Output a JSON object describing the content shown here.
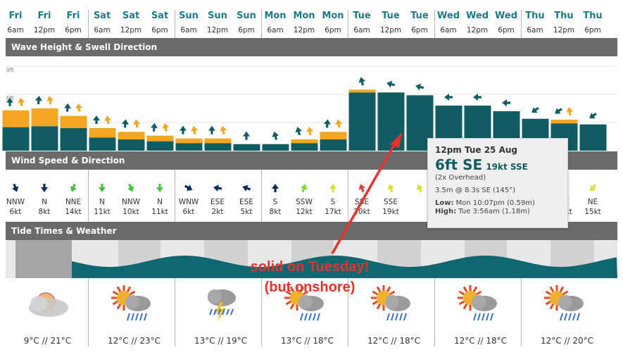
{
  "columns": [
    {
      "day": "Fri",
      "time": "6am"
    },
    {
      "day": "Fri",
      "time": "12pm"
    },
    {
      "day": "Fri",
      "time": "6pm"
    },
    {
      "day": "Sat",
      "time": "6am"
    },
    {
      "day": "Sat",
      "time": "12pm"
    },
    {
      "day": "Sat",
      "time": "6pm"
    },
    {
      "day": "Sun",
      "time": "6am"
    },
    {
      "day": "Sun",
      "time": "12pm"
    },
    {
      "day": "Sun",
      "time": "6pm"
    },
    {
      "day": "Mon",
      "time": "6am"
    },
    {
      "day": "Mon",
      "time": "12pm"
    },
    {
      "day": "Mon",
      "time": "6pm"
    },
    {
      "day": "Tue",
      "time": "6am"
    },
    {
      "day": "Tue",
      "time": "12pm"
    },
    {
      "day": "Tue",
      "time": "6pm"
    },
    {
      "day": "Wed",
      "time": "6am"
    },
    {
      "day": "Wed",
      "time": "12pm"
    },
    {
      "day": "Wed",
      "time": "6pm"
    },
    {
      "day": "Thu",
      "time": "6am"
    },
    {
      "day": "Thu",
      "time": "12pm"
    },
    {
      "day": "Thu",
      "time": "6pm"
    }
  ],
  "sections": {
    "wave": "Wave Height & Swell Direction",
    "wind": "Wind Speed & Direction",
    "tide": "Tide Times & Weather"
  },
  "chart_data": {
    "type": "bar",
    "title": "Wave Height & Swell Direction",
    "y_ticks": [
      "9ft",
      "6ft",
      "3ft"
    ],
    "ylim": [
      0,
      9
    ],
    "x": [
      "Fri 6am",
      "Fri 12pm",
      "Fri 6pm",
      "Sat 6am",
      "Sat 12pm",
      "Sat 6pm",
      "Sun 6am",
      "Sun 12pm",
      "Sun 6pm",
      "Mon 6am",
      "Mon 12pm",
      "Mon 6pm",
      "Tue 6am",
      "Tue 12pm",
      "Tue 6pm",
      "Wed 6am",
      "Wed 12pm",
      "Wed 6pm",
      "Thu 6am",
      "Thu 12pm",
      "Thu 6pm"
    ],
    "primary_swell_ft": [
      2.5,
      2.6,
      2.4,
      1.4,
      1.2,
      1.0,
      0.8,
      0.8,
      0.7,
      0.7,
      0.8,
      1.2,
      6.2,
      6.2,
      5.9,
      4.8,
      4.8,
      4.2,
      3.4,
      2.9,
      2.8
    ],
    "combined_ft": [
      4.3,
      4.5,
      3.7,
      2.4,
      2.0,
      1.6,
      1.3,
      1.3,
      0.7,
      0.7,
      1.2,
      2.0,
      6.5,
      6.2,
      5.9,
      4.8,
      4.8,
      4.2,
      3.4,
      3.3,
      2.8
    ],
    "colors": {
      "primary": "#0f5c63",
      "secondary": "#f5a623"
    }
  },
  "wind": [
    {
      "dir": "NNW",
      "speed": "6kt",
      "color": "#0b2a5c"
    },
    {
      "dir": "N",
      "speed": "8kt",
      "color": "#0b2a5c"
    },
    {
      "dir": "NNE",
      "speed": "14kt",
      "color": "#3ec43e"
    },
    {
      "dir": "N",
      "speed": "11kt",
      "color": "#3ec43e"
    },
    {
      "dir": "NNW",
      "speed": "10kt",
      "color": "#3ec43e"
    },
    {
      "dir": "N",
      "speed": "11kt",
      "color": "#3ec43e"
    },
    {
      "dir": "WNW",
      "speed": "6kt",
      "color": "#0b2a5c"
    },
    {
      "dir": "ESE",
      "speed": "2kt",
      "color": "#0b2a5c"
    },
    {
      "dir": "ESE",
      "speed": "5kt",
      "color": "#0b2a5c"
    },
    {
      "dir": "S",
      "speed": "8kt",
      "color": "#0b2a5c"
    },
    {
      "dir": "SSW",
      "speed": "12kt",
      "color": "#7dd63a"
    },
    {
      "dir": "S",
      "speed": "17kt",
      "color": "#d6e03a"
    },
    {
      "dir": "SSE",
      "speed": "20kt",
      "color": "#e03a3a"
    },
    {
      "dir": "SSE",
      "speed": "19kt",
      "color": "#d6e03a"
    },
    {
      "dir": "",
      "speed": "",
      "color": "#d6e03a"
    },
    {
      "dir": "",
      "speed": "",
      "color": "#d6e03a"
    },
    {
      "dir": "",
      "speed": "",
      "color": "#d6e03a"
    },
    {
      "dir": "",
      "speed": "",
      "color": "#d6e03a"
    },
    {
      "dir": "",
      "speed": "",
      "color": "#d6e03a"
    },
    {
      "dir": "NE",
      "speed": "17kt",
      "color": "#c8d43a"
    },
    {
      "dir": "NE",
      "speed": "15kt",
      "color": "#d6e03a"
    }
  ],
  "tooltip": {
    "when": "12pm Tue 25 Aug",
    "height": "6ft SE",
    "wind": "19kt SSE",
    "overhead": "(2x Overhead)",
    "swell": "3.5m @ 8.3s SE (145°)",
    "low_label": "Low:",
    "low_value": "Mon 10:07pm (0.59m)",
    "high_label": "High:",
    "high_value": "Tue 3:56am (1.18m)"
  },
  "weather": [
    {
      "temp": "9°C // 21°C",
      "icon": "hazy-sun-icon"
    },
    {
      "temp": "12°C // 23°C",
      "icon": "sun-cloud-rain-icon"
    },
    {
      "temp": "13°C // 19°C",
      "icon": "cloud-rain-icon"
    },
    {
      "temp": "13°C // 18°C",
      "icon": "sun-cloud-rain-icon"
    },
    {
      "temp": "12°C // 18°C",
      "icon": "sun-cloud-rain-icon"
    },
    {
      "temp": "12°C // 18°C",
      "icon": "sun-cloud-rain-icon"
    },
    {
      "temp": "12°C // 20°C",
      "icon": "sun-cloud-rain-icon"
    }
  ],
  "annotation": {
    "line1": "solid on Tuesday!",
    "line2": "(but onshore)"
  }
}
